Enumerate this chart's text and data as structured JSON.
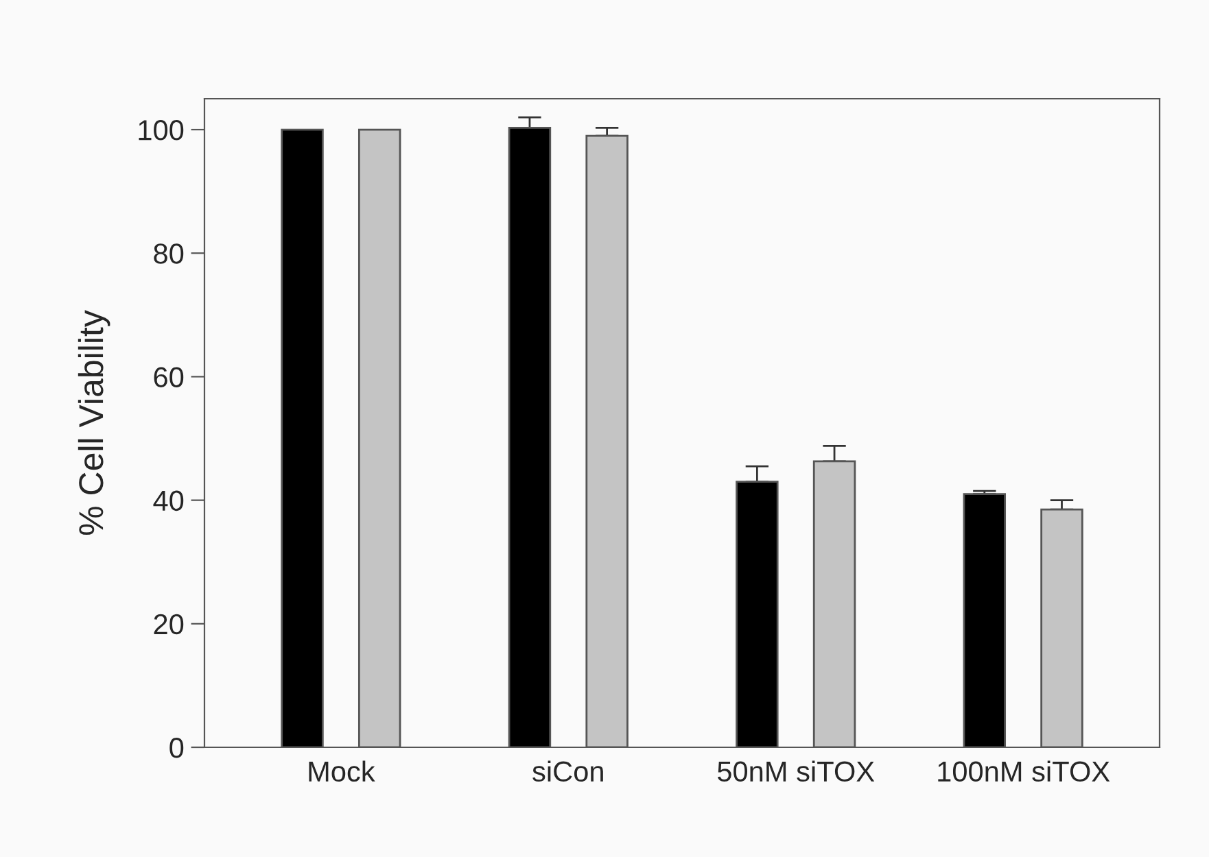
{
  "chart_data": {
    "type": "bar",
    "ylabel": "% Cell Viability",
    "categories": [
      "Mock",
      "siCon",
      "50nM siTOX",
      "100nM siTOX"
    ],
    "series": [
      {
        "color": "#000000",
        "values": [
          100,
          100.3,
          43,
          41
        ],
        "errors": [
          null,
          [
            100.3,
            102
          ],
          [
            43,
            45.5
          ],
          [
            41,
            41.5
          ]
        ]
      },
      {
        "color": "#c4c4c4",
        "values": [
          100,
          99,
          46.3,
          38.5
        ],
        "errors": [
          null,
          [
            99,
            100.3
          ],
          [
            46.3,
            48.8
          ],
          [
            38.5,
            40
          ]
        ]
      }
    ],
    "ylim": [
      0,
      105
    ],
    "yticks": [
      0,
      20,
      40,
      60,
      80,
      100
    ],
    "grid": false,
    "legend": false
  }
}
